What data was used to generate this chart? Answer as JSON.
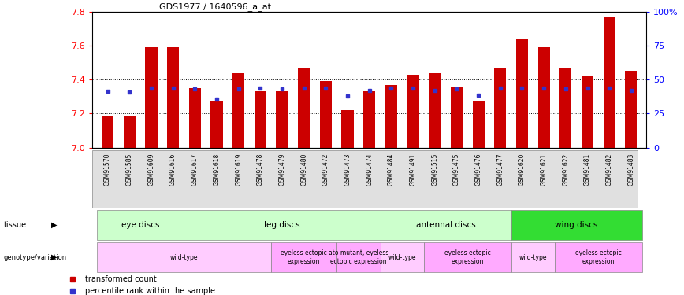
{
  "title": "GDS1977 / 1640596_a_at",
  "samples": [
    "GSM91570",
    "GSM91585",
    "GSM91609",
    "GSM91616",
    "GSM91617",
    "GSM91618",
    "GSM91619",
    "GSM91478",
    "GSM91479",
    "GSM91480",
    "GSM91472",
    "GSM91473",
    "GSM91474",
    "GSM91484",
    "GSM91491",
    "GSM91515",
    "GSM91475",
    "GSM91476",
    "GSM91477",
    "GSM91620",
    "GSM91621",
    "GSM91622",
    "GSM91481",
    "GSM91482",
    "GSM91483"
  ],
  "bar_values": [
    7.19,
    7.19,
    7.59,
    7.59,
    7.35,
    7.27,
    7.44,
    7.33,
    7.33,
    7.47,
    7.39,
    7.22,
    7.33,
    7.37,
    7.43,
    7.44,
    7.36,
    7.27,
    7.47,
    7.64,
    7.59,
    7.47,
    7.42,
    7.77,
    7.45
  ],
  "percentile_values": [
    7.333,
    7.325,
    7.352,
    7.352,
    7.345,
    7.287,
    7.345,
    7.352,
    7.345,
    7.352,
    7.352,
    7.305,
    7.338,
    7.352,
    7.352,
    7.335,
    7.345,
    7.31,
    7.352,
    7.352,
    7.352,
    7.345,
    7.352,
    7.352,
    7.338
  ],
  "ymin": 7.0,
  "ymax": 7.8,
  "yticks": [
    7.0,
    7.2,
    7.4,
    7.6,
    7.8
  ],
  "right_yticks": [
    0,
    25,
    50,
    75,
    100
  ],
  "right_ytick_labels": [
    "0",
    "25",
    "50",
    "75",
    "100%"
  ],
  "bar_color": "#cc0000",
  "percentile_color": "#3333cc",
  "tissue_groups": [
    {
      "label": "eye discs",
      "start": 0,
      "end": 4,
      "color": "#ccffcc"
    },
    {
      "label": "leg discs",
      "start": 4,
      "end": 13,
      "color": "#ccffcc"
    },
    {
      "label": "antennal discs",
      "start": 13,
      "end": 19,
      "color": "#ccffcc"
    },
    {
      "label": "wing discs",
      "start": 19,
      "end": 25,
      "color": "#33dd33"
    }
  ],
  "genotype_groups": [
    {
      "label": "wild-type",
      "start": 0,
      "end": 8,
      "color": "#ffccff"
    },
    {
      "label": "eyeless ectopic\nexpression",
      "start": 8,
      "end": 11,
      "color": "#ffaaff"
    },
    {
      "label": "ato mutant, eyeless\nectopic expression",
      "start": 11,
      "end": 13,
      "color": "#ffaaff"
    },
    {
      "label": "wild-type",
      "start": 13,
      "end": 15,
      "color": "#ffccff"
    },
    {
      "label": "eyeless ectopic\nexpression",
      "start": 15,
      "end": 19,
      "color": "#ffaaff"
    },
    {
      "label": "wild-type",
      "start": 19,
      "end": 21,
      "color": "#ffccff"
    },
    {
      "label": "eyeless ectopic\nexpression",
      "start": 21,
      "end": 25,
      "color": "#ffaaff"
    }
  ]
}
